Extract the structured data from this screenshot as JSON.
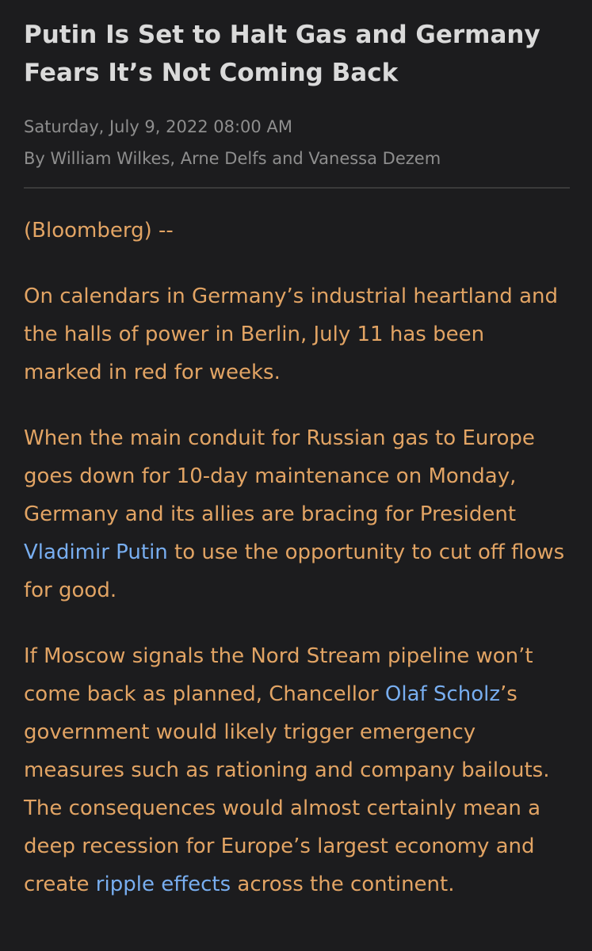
{
  "article": {
    "headline": "Putin Is Set to Halt Gas and Germany Fears It’s Not Coming Back",
    "date": "Saturday, July 9, 2022 08:00 AM",
    "byline": "By William Wilkes, Arne Delfs and Vanessa Dezem",
    "source": "(Bloomberg) --",
    "p1": "On calendars in Germany’s industrial heartland and the halls of power in Berlin, July 11 has been marked in red for weeks.",
    "p2_a": "When the main conduit for Russian gas to Europe goes down for 10-day maintenance on Monday, Germany and its allies are bracing for President ",
    "p2_link": "Vladimir Putin",
    "p2_b": " to use the opportunity to cut off flows for good.",
    "p3_a": "If Moscow signals the Nord Stream pipeline won’t come back as planned, Chancellor ",
    "p3_link1": "Olaf Scholz",
    "p3_b": "’s government would likely trigger emergency measures such as rationing and company bailouts. The consequences would almost certainly mean a deep recession for Europe’s largest economy and create ",
    "p3_link2": "ripple effects",
    "p3_c": " across the continent."
  },
  "colors": {
    "background": "#1c1c1e",
    "headline": "#dadada",
    "meta": "#8e8e8e",
    "body": "#e2a464",
    "link": "#78aef0"
  }
}
